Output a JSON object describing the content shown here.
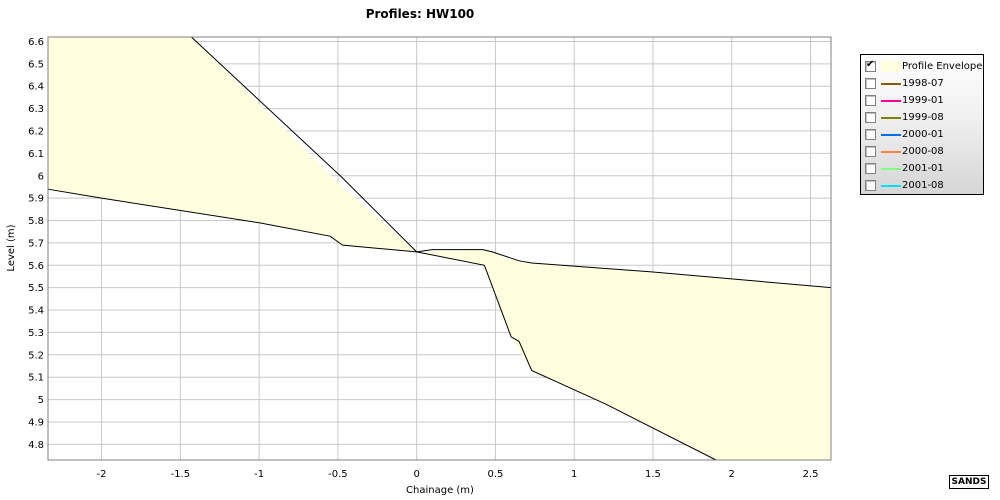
{
  "chart_data": {
    "type": "area",
    "title": "Profiles: HW100",
    "xlabel": "Chainage (m)",
    "ylabel": "Level (m)",
    "xlim": [
      -2.34,
      2.63
    ],
    "ylim": [
      4.73,
      6.62
    ],
    "x_ticks": [
      -2,
      -1.5,
      -1,
      -0.5,
      0,
      0.5,
      1,
      1.5,
      2,
      2.5
    ],
    "y_ticks": [
      4.8,
      4.9,
      5,
      5.1,
      5.2,
      5.3,
      5.4,
      5.5,
      5.6,
      5.7,
      5.8,
      5.9,
      6,
      6.1,
      6.2,
      6.3,
      6.4,
      6.5,
      6.6
    ],
    "grid": true,
    "legend_position": "right",
    "envelope": {
      "name": "Profile Envelope",
      "color": "#ffffe0",
      "checked": true,
      "upper": [
        [
          -2.34,
          6.62
        ],
        [
          -1.43,
          6.62
        ],
        [
          -0.47,
          5.95
        ],
        [
          0.0,
          5.66
        ],
        [
          0.44,
          5.67
        ],
        [
          0.57,
          5.63
        ],
        [
          0.73,
          5.61
        ],
        [
          1.5,
          5.57
        ],
        [
          2.63,
          5.5
        ]
      ],
      "lower": [
        [
          -2.34,
          5.94
        ],
        [
          -2.0,
          5.9
        ],
        [
          -1.0,
          5.79
        ],
        [
          -0.55,
          5.73
        ],
        [
          -0.47,
          5.69
        ],
        [
          0.0,
          5.66
        ],
        [
          0.43,
          5.6
        ],
        [
          0.6,
          5.28
        ],
        [
          0.73,
          5.13
        ],
        [
          1.2,
          4.98
        ],
        [
          1.9,
          4.73
        ],
        [
          2.63,
          4.73
        ]
      ],
      "boundary_lines": [
        [
          [
            -1.43,
            6.62
          ],
          [
            -0.47,
            5.99
          ],
          [
            0.0,
            5.66
          ],
          [
            0.43,
            5.6
          ],
          [
            0.6,
            5.28
          ],
          [
            0.65,
            5.26
          ],
          [
            0.73,
            5.13
          ],
          [
            1.2,
            4.98
          ],
          [
            1.9,
            4.73
          ]
        ],
        [
          [
            -2.34,
            5.94
          ],
          [
            -2.0,
            5.9
          ],
          [
            -1.0,
            5.79
          ],
          [
            -0.55,
            5.73
          ],
          [
            -0.47,
            5.69
          ],
          [
            0.0,
            5.66
          ],
          [
            0.1,
            5.67
          ],
          [
            0.42,
            5.67
          ],
          [
            0.48,
            5.66
          ],
          [
            0.65,
            5.62
          ],
          [
            0.73,
            5.61
          ],
          [
            1.5,
            5.57
          ],
          [
            2.63,
            5.5
          ]
        ]
      ]
    },
    "series": [
      {
        "name": "1998-07",
        "color": "#806000",
        "checked": false,
        "values": []
      },
      {
        "name": "1999-01",
        "color": "#ff0090",
        "checked": false,
        "values": []
      },
      {
        "name": "1999-08",
        "color": "#808000",
        "checked": false,
        "values": []
      },
      {
        "name": "2000-01",
        "color": "#0070e0",
        "checked": false,
        "values": []
      },
      {
        "name": "2000-08",
        "color": "#ff8040",
        "checked": false,
        "values": []
      },
      {
        "name": "2001-01",
        "color": "#80ff80",
        "checked": false,
        "values": []
      },
      {
        "name": "2001-08",
        "color": "#00e0ff",
        "checked": false,
        "values": []
      }
    ]
  },
  "badge": {
    "label": "SANDS"
  }
}
